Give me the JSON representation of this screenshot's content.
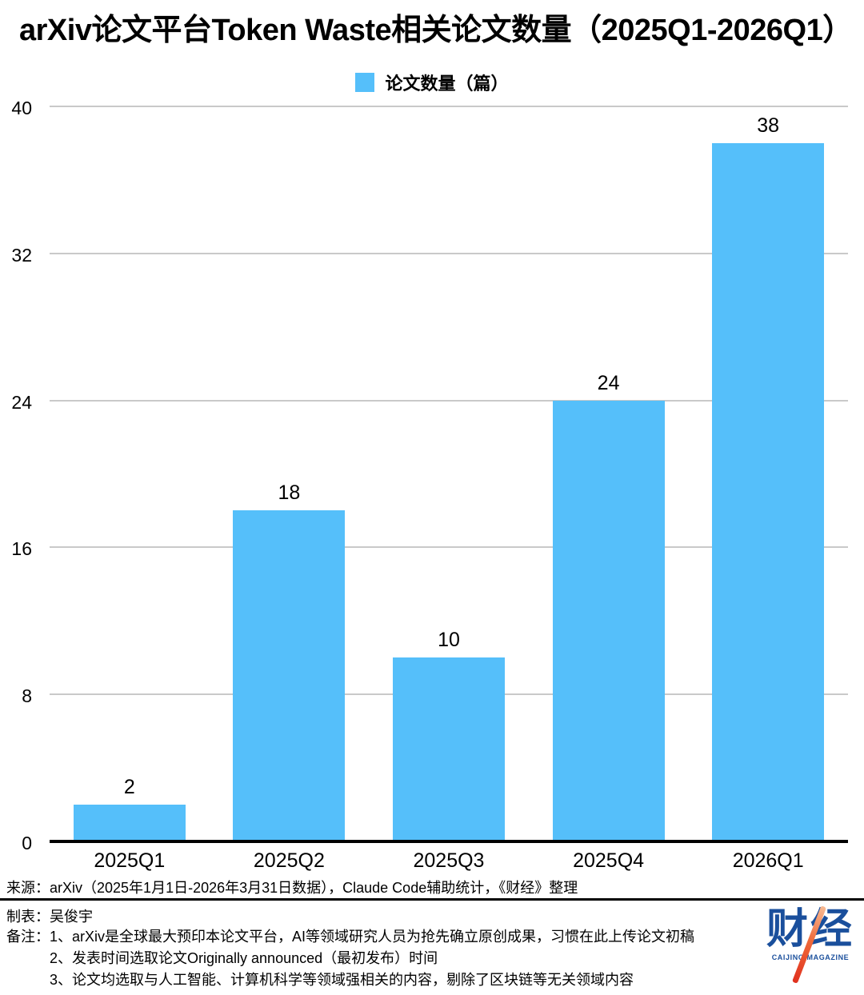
{
  "title": "arXiv论文平台Token Waste相关论文数量（2025Q1-2026Q1）",
  "legend": {
    "label": "论文数量（篇）",
    "color": "#55BFFA"
  },
  "chart_data": {
    "type": "bar",
    "title": "arXiv论文平台Token Waste相关论文数量（2025Q1-2026Q1）",
    "categories": [
      "2025Q1",
      "2025Q2",
      "2025Q3",
      "2025Q4",
      "2026Q1"
    ],
    "values": [
      2,
      18,
      10,
      24,
      38
    ],
    "xlabel": "",
    "ylabel": "",
    "ylim": [
      0,
      40
    ],
    "yticks": [
      0,
      8,
      16,
      24,
      32,
      40
    ],
    "grid": true,
    "legend": [
      "论文数量（篇）"
    ],
    "legend_position": "top",
    "bar_color": "#55BFFA",
    "gridline_color": "#c9c9c9",
    "axis_color": "#000000"
  },
  "footer": {
    "source": "来源：arXiv（2025年1月1日-2026年3月31日数据），Claude Code辅助统计，《财经》整理",
    "maker": "制表：吴俊宇",
    "notes_label": "备注：",
    "notes": [
      "1、arXiv是全球最大预印本论文平台，AI等领域研究人员为抢先确立原创成果，习惯在此上传论文初稿",
      "2、发表时间选取论文Originally announced（最初发布）时间",
      "3、论文均选取与人工智能、计算机科学等领域强相关的内容，剔除了区块链等无关领域内容"
    ],
    "logo": {
      "text": "财经",
      "subtext": "CAIJING MAGAZINE",
      "blue": "#1A4F9C",
      "red": "#E0301E"
    }
  }
}
